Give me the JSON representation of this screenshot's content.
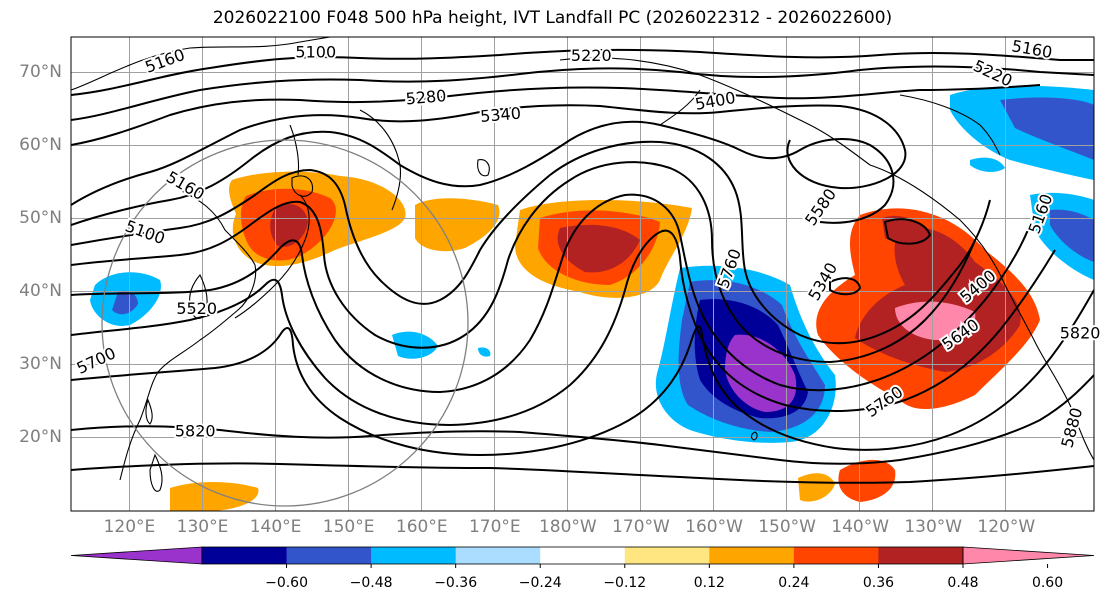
{
  "title": "2026022100 F048 500 hPa height, IVT Landfall PC (2026022312 - 2026022600)",
  "lat_labels": [
    {
      "lat": 70,
      "text": "70°N"
    },
    {
      "lat": 60,
      "text": "60°N"
    },
    {
      "lat": 50,
      "text": "50°N"
    },
    {
      "lat": 40,
      "text": "40°N"
    },
    {
      "lat": 30,
      "text": "30°N"
    },
    {
      "lat": 20,
      "text": "20°N"
    }
  ],
  "lon_labels": [
    {
      "lon": 120,
      "text": "120°E"
    },
    {
      "lon": 130,
      "text": "130°E"
    },
    {
      "lon": 140,
      "text": "140°E"
    },
    {
      "lon": 150,
      "text": "150°E"
    },
    {
      "lon": 160,
      "text": "160°E"
    },
    {
      "lon": 170,
      "text": "170°E"
    },
    {
      "lon": 180,
      "text": "180°W"
    },
    {
      "lon": 190,
      "text": "170°W"
    },
    {
      "lon": 200,
      "text": "160°W"
    },
    {
      "lon": 210,
      "text": "150°W"
    },
    {
      "lon": 220,
      "text": "140°W"
    },
    {
      "lon": 230,
      "text": "130°W"
    },
    {
      "lon": 240,
      "text": "120°W"
    }
  ],
  "map_extent": {
    "lon_min": 112,
    "lon_max": 252,
    "lat_min": 10,
    "lat_max": 75
  },
  "colorbar": {
    "colors": [
      "#9933cc",
      "#000099",
      "#3355cc",
      "#00bbff",
      "#aaddff",
      "#ffffff",
      "#ffe680",
      "#ffa500",
      "#ff4500",
      "#b22222",
      "#ff88aa"
    ],
    "ticks": [
      "−0.60",
      "−0.48",
      "−0.36",
      "−0.24",
      "−0.12",
      "0.12",
      "0.24",
      "0.36",
      "0.48",
      "0.60"
    ]
  },
  "contour_labels": [
    {
      "text": "5160",
      "lon": 124.9,
      "lat": 71.6,
      "rot": -20
    },
    {
      "text": "5100",
      "lon": 145.5,
      "lat": 72.8,
      "rot": 0
    },
    {
      "text": "5220",
      "lon": 183.2,
      "lat": 72.3,
      "rot": 0
    },
    {
      "text": "5160",
      "lon": 243.5,
      "lat": 73.2,
      "rot": 10
    },
    {
      "text": "5220",
      "lon": 238.1,
      "lat": 69.9,
      "rot": 25
    },
    {
      "text": "5280",
      "lon": 160.6,
      "lat": 66.6,
      "rot": -5
    },
    {
      "text": "5340",
      "lon": 170.8,
      "lat": 64.2,
      "rot": -5
    },
    {
      "text": "5400",
      "lon": 200.2,
      "lat": 66.1,
      "rot": -10
    },
    {
      "text": "5160",
      "lon": 127.6,
      "lat": 54.5,
      "rot": 30
    },
    {
      "text": "5100",
      "lon": 122.1,
      "lat": 48.1,
      "rot": 20
    },
    {
      "text": "5520",
      "lon": 129.2,
      "lat": 37.6,
      "rot": 0
    },
    {
      "text": "5700",
      "lon": 115.5,
      "lat": 30.5,
      "rot": -25
    },
    {
      "text": "5820",
      "lon": 129.0,
      "lat": 20.8,
      "rot": 0
    },
    {
      "text": "5760",
      "lon": 202.2,
      "lat": 43.2,
      "rot": -70
    },
    {
      "text": "5580",
      "lon": 214.7,
      "lat": 51.6,
      "rot": -55
    },
    {
      "text": "5340",
      "lon": 215.0,
      "lat": 41.4,
      "rot": -60
    },
    {
      "text": "5400",
      "lon": 236.2,
      "lat": 40.7,
      "rot": -40
    },
    {
      "text": "5640",
      "lon": 233.8,
      "lat": 34.1,
      "rot": -35
    },
    {
      "text": "5760",
      "lon": 223.4,
      "lat": 24.9,
      "rot": -35
    },
    {
      "text": "5880",
      "lon": 249.1,
      "lat": 21.4,
      "rot": -75
    },
    {
      "text": "5820",
      "lon": 250.1,
      "lat": 34.3,
      "rot": 0
    },
    {
      "text": "5160",
      "lon": 244.8,
      "lat": 50.7,
      "rot": -70
    }
  ]
}
